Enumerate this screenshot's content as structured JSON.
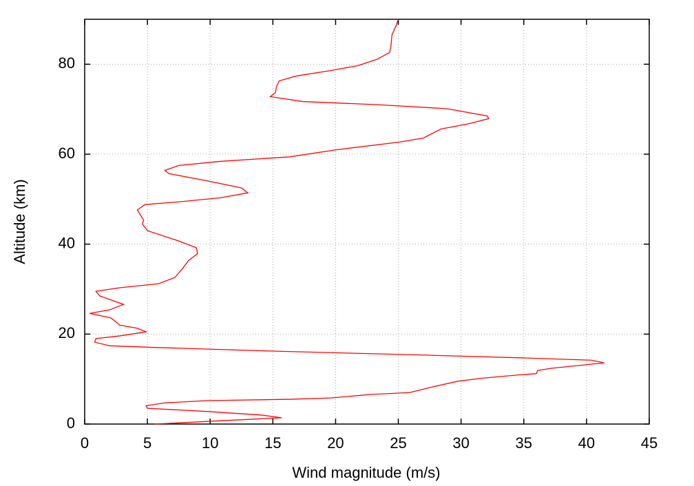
{
  "chart_data": {
    "type": "line",
    "x_label": "Wind magnitude (m/s)",
    "y_label": "Altitude (km)",
    "x": [
      5.6,
      15.7,
      14.1,
      9.7,
      5.0,
      4.9,
      6.4,
      9.7,
      16.3,
      19.6,
      22.9,
      25.9,
      27.8,
      29.7,
      31.7,
      34.5,
      36.0,
      36.1,
      37.2,
      41.4,
      40.4,
      35.0,
      26.2,
      15.2,
      5.9,
      2.0,
      0.8,
      0.9,
      2.8,
      4.9,
      4.2,
      2.8,
      2.1,
      0.4,
      2.0,
      3.1,
      1.2,
      0.9,
      2.8,
      5.9,
      7.2,
      7.8,
      8.3,
      9.0,
      8.9,
      7.5,
      5.0,
      4.6,
      4.7,
      4.2,
      4.8,
      7.5,
      10.8,
      13.0,
      12.5,
      9.7,
      6.7,
      6.4,
      7.5,
      10.8,
      16.3,
      20.1,
      25.1,
      27.0,
      28.4,
      30.5,
      32.2,
      32.1,
      28.9,
      23.4,
      17.4,
      14.8,
      15.2,
      15.3,
      15.5,
      16.9,
      19.6,
      21.8,
      23.3,
      24.3,
      24.4,
      24.5,
      24.8,
      25.0
    ],
    "values": [
      0,
      1.4,
      2.0,
      2.8,
      3.5,
      4.1,
      4.7,
      5.2,
      5.5,
      5.8,
      6.6,
      7.0,
      8.3,
      9.5,
      10.2,
      10.9,
      11.2,
      11.9,
      12.4,
      13.6,
      14.2,
      14.7,
      15.4,
      16.2,
      17.0,
      17.4,
      18.2,
      19.0,
      19.6,
      20.5,
      21.3,
      22.0,
      23.6,
      24.6,
      25.4,
      26.6,
      28.5,
      29.5,
      30.3,
      31.2,
      32.6,
      34.6,
      36.4,
      37.9,
      39.2,
      40.7,
      43.0,
      44.5,
      45.3,
      47.6,
      48.8,
      49.4,
      50.3,
      51.4,
      52.5,
      54.1,
      55.7,
      56.4,
      57.5,
      58.4,
      59.4,
      61.0,
      62.7,
      63.6,
      65.6,
      66.7,
      67.9,
      68.5,
      70.1,
      71.0,
      71.7,
      72.8,
      73.7,
      75.1,
      76.3,
      77.4,
      78.6,
      79.7,
      81.1,
      82.6,
      83.8,
      86.6,
      88.4,
      90
    ],
    "color": "#ff0000",
    "xlim": [
      0,
      45
    ],
    "xticks": [
      0,
      5,
      10,
      15,
      20,
      25,
      30,
      35,
      40,
      45
    ],
    "ylim": [
      0,
      90
    ],
    "yticks": [
      0,
      20,
      40,
      60,
      80
    ],
    "grid": true
  }
}
